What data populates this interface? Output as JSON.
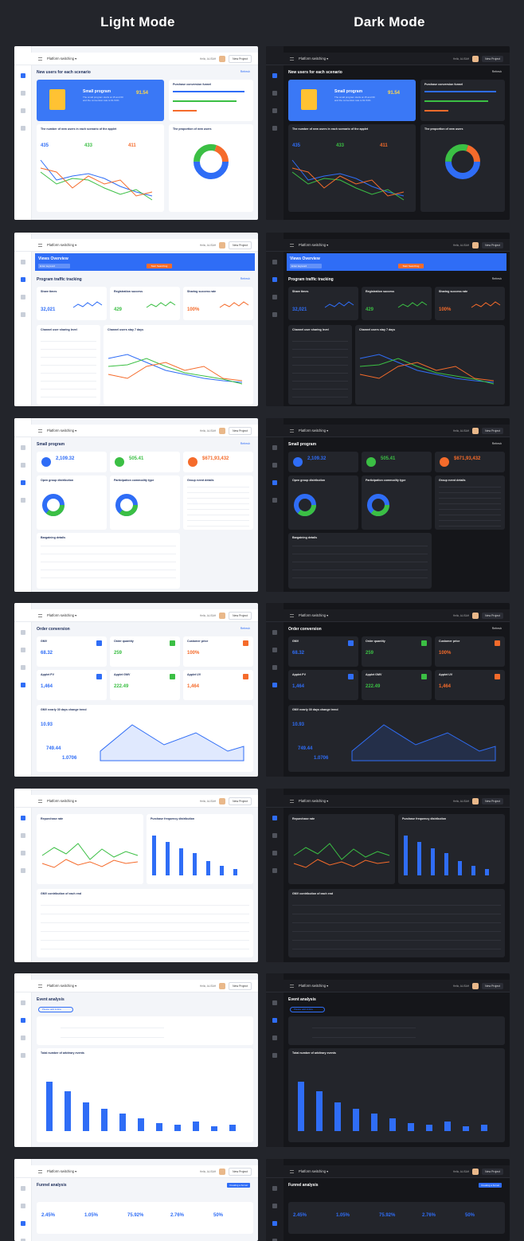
{
  "headers": {
    "light": "Light Mode",
    "dark": "Dark Mode"
  },
  "topbar": {
    "platform": "Platform switching",
    "hello": "Hello, ALISAH",
    "new_project": "New Project"
  },
  "screens": [
    {
      "id": "new-users",
      "title": "New users for each scenario",
      "refresh": "Refresh",
      "small_program": {
        "title": "Small program",
        "value": "91.54",
        "desc": "The small program starts at 15 and 60 and the conversion rate is 91.54%"
      },
      "funnel_title": "Purchase conversion funnel",
      "line_title": "The number of new users in each scenario of the applet",
      "stats": [
        "435",
        "433",
        "411"
      ],
      "donut_title": "The proportion of new users",
      "colors": {
        "blue": "#2f6df6",
        "green": "#3bbf44",
        "orange": "#f56b2b"
      }
    },
    {
      "id": "views",
      "banner_title": "Views Overview",
      "banner_input": "Enter keyword",
      "banner_button": "Start Searching",
      "title": "Program traffic tracking",
      "refresh": "Refresh",
      "kpis": [
        {
          "label": "Share times",
          "value": "32,021"
        },
        {
          "label": "Registration success",
          "value": "429"
        },
        {
          "label": "Sharing success rate",
          "value": "100%"
        }
      ],
      "table_title": "Channel user sharing level",
      "chart_title": "Channel users stay 7 days"
    },
    {
      "id": "small-program",
      "title": "Small program",
      "refresh": "Refresh",
      "kpis": [
        "2,109.32",
        "505.41",
        "$671,93,432"
      ],
      "cards": [
        "Open group distribution",
        "Participation commodity type",
        "Group event details"
      ],
      "bargain_title": "Bargaining details"
    },
    {
      "id": "order-conversion",
      "title": "Order conversion",
      "refresh": "Refresh",
      "kpis": [
        {
          "label": "GMV",
          "value": "68.32"
        },
        {
          "label": "Order quantity",
          "value": "259"
        },
        {
          "label": "Customer price",
          "value": "100%"
        },
        {
          "label": "Applet PV",
          "value": "1,464"
        },
        {
          "label": "Applet GMV",
          "value": "222.49"
        },
        {
          "label": "Applet UV",
          "value": "1,464"
        }
      ],
      "trend_title": "GMV nearly 30 days change trend",
      "trend_values": [
        "10.93",
        "749.44",
        "1.0706"
      ]
    },
    {
      "id": "repurchase",
      "cards": [
        "Repurchase rate",
        "Purchase frequency distribution"
      ],
      "table_title": "GMV contribution of each end"
    },
    {
      "id": "event-analysis",
      "title": "Event analysis",
      "add_label": "Please add indica",
      "bar_title": "Total number of arbitrary events"
    },
    {
      "id": "funnel-analysis",
      "title": "Funnel analysis",
      "button": "Creating a funnel",
      "kpis": [
        "2.45%",
        "1.05%",
        "75.92%",
        "2.76%",
        "50%"
      ]
    }
  ]
}
